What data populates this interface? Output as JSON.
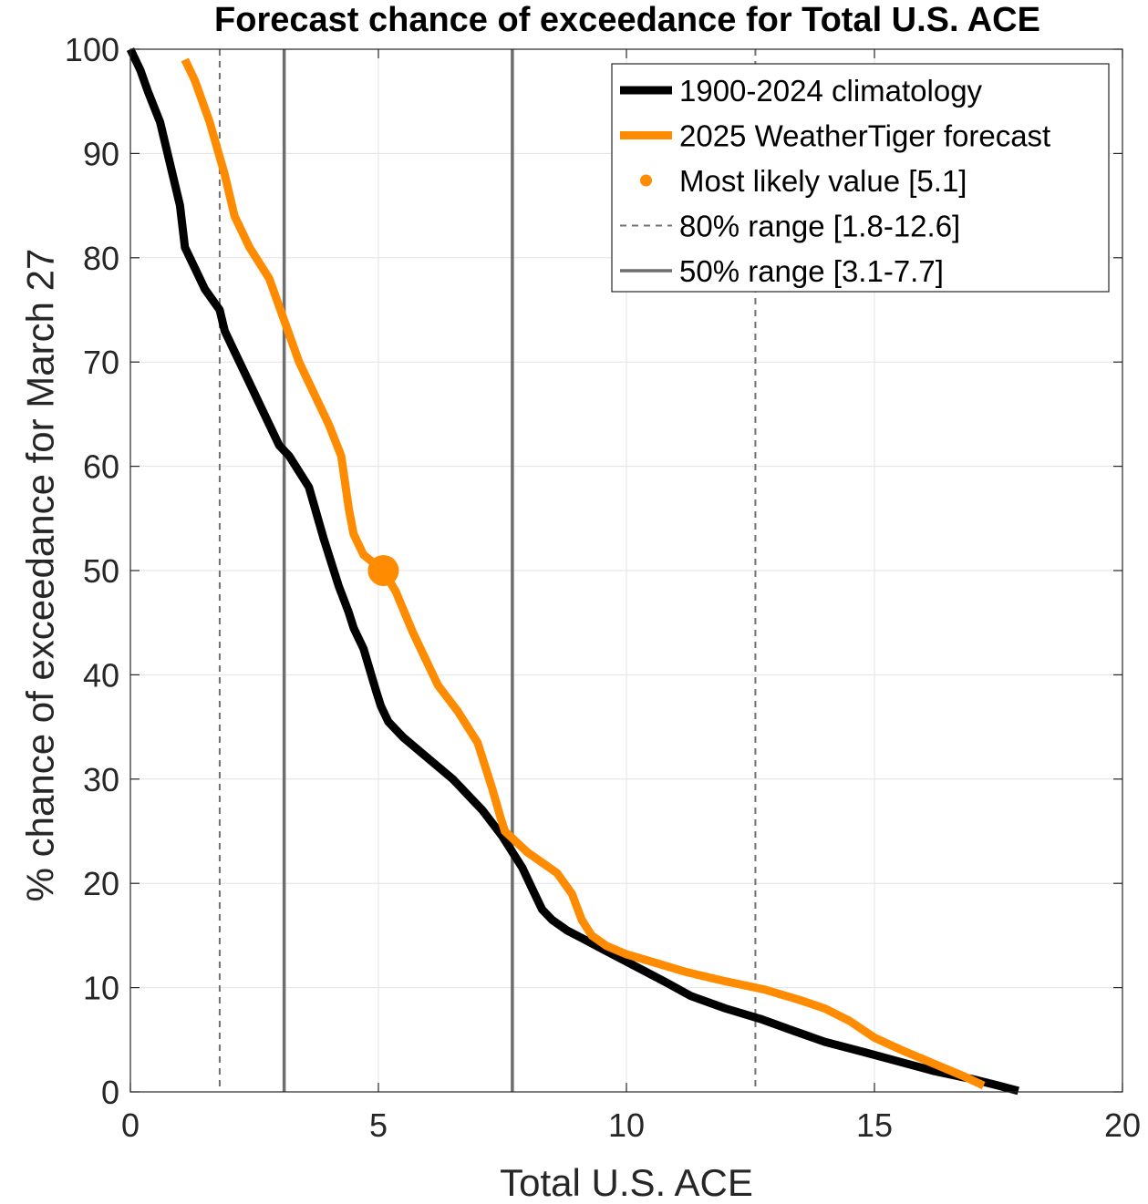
{
  "chart_data": {
    "type": "line",
    "title": "Forecast chance of exceedance for Total U.S. ACE",
    "xlabel": "Total U.S. ACE",
    "ylabel": "% chance of exceedance for March 27",
    "xlim": [
      0,
      20
    ],
    "ylim": [
      0,
      100
    ],
    "x_ticks": [
      0,
      5,
      10,
      15,
      20
    ],
    "y_ticks": [
      0,
      10,
      20,
      30,
      40,
      50,
      60,
      70,
      80,
      90,
      100
    ],
    "x_tick_labels": [
      "0",
      "5",
      "10",
      "15",
      "20"
    ],
    "y_tick_labels": [
      "0",
      "10",
      "20",
      "30",
      "40",
      "50",
      "60",
      "70",
      "80",
      "90",
      "100"
    ],
    "grid": true,
    "legend_position": "top-right",
    "series": [
      {
        "name": "1900-2024 climatology",
        "color": "#000000",
        "x": [
          0,
          0.2,
          0.35,
          0.6,
          0.8,
          1.0,
          1.1,
          1.3,
          1.5,
          1.8,
          1.9,
          2.1,
          2.4,
          2.7,
          3.0,
          3.2,
          3.6,
          3.9,
          4.2,
          4.4,
          4.5,
          4.7,
          4.95,
          5.05,
          5.2,
          5.5,
          6.0,
          6.5,
          6.8,
          7.1,
          7.5,
          7.9,
          8.1,
          8.3,
          8.5,
          8.8,
          9.2,
          9.6,
          10.2,
          10.8,
          11.3,
          12.0,
          12.7,
          13.4,
          14.0,
          14.8,
          15.5,
          16.2,
          17.0,
          17.5,
          17.9
        ],
        "y": [
          100,
          98,
          96,
          93,
          89,
          85,
          81,
          79,
          77,
          75,
          73,
          71,
          68,
          65,
          62,
          61,
          58,
          53,
          48.5,
          46,
          44.5,
          42.5,
          38.5,
          37,
          35.5,
          34,
          32,
          30,
          28.5,
          27,
          24.5,
          21.5,
          19.5,
          17.5,
          16.5,
          15.5,
          14.5,
          13.5,
          12,
          10.5,
          9.2,
          8,
          7,
          5.8,
          4.8,
          3.8,
          2.9,
          2,
          1.2,
          0.6,
          0.1
        ]
      },
      {
        "name": "2025 WeatherTiger forecast",
        "color": "#FF8C00",
        "x": [
          1.1,
          1.3,
          1.6,
          1.9,
          2.1,
          2.4,
          2.8,
          3.1,
          3.4,
          3.7,
          4.0,
          4.25,
          4.4,
          4.5,
          4.7,
          5.1,
          5.35,
          5.7,
          6.2,
          6.6,
          7.0,
          7.3,
          7.45,
          7.55,
          8.0,
          8.6,
          8.9,
          9.1,
          9.3,
          9.6,
          10.0,
          10.5,
          11.2,
          12.0,
          12.8,
          13.5,
          14.0,
          14.5,
          15.0,
          15.6,
          16.2,
          16.8,
          17.2
        ],
        "y": [
          99,
          97,
          93,
          88,
          84,
          81,
          78,
          74,
          70,
          67,
          64,
          61,
          56,
          53.5,
          51.5,
          50,
          48,
          44,
          39,
          36.5,
          33.5,
          29,
          26.5,
          25,
          23,
          21,
          19,
          16.5,
          15,
          14,
          13.2,
          12.5,
          11.5,
          10.6,
          9.8,
          8.8,
          8,
          6.8,
          5.2,
          3.9,
          2.7,
          1.5,
          0.6
        ]
      }
    ],
    "markers": [
      {
        "name": "Most likely value [5.1]",
        "x": 5.1,
        "y": 50,
        "color": "#FF8C00"
      }
    ],
    "vertical_lines": [
      {
        "name": "80% range [1.8-12.6]",
        "x": [
          1.8,
          12.6
        ],
        "style": "dashed",
        "color": "#707070"
      },
      {
        "name": "50% range [3.1-7.7]",
        "x": [
          3.1,
          7.7
        ],
        "style": "solid",
        "color": "#6E6E6E"
      }
    ],
    "legend": [
      {
        "label": "1900-2024 climatology",
        "kind": "line-thick",
        "color": "#000000"
      },
      {
        "label": "2025 WeatherTiger forecast",
        "kind": "line-thick",
        "color": "#FF8C00"
      },
      {
        "label": "Most likely value [5.1]",
        "kind": "dot",
        "color": "#FF8C00"
      },
      {
        "label": "80% range [1.8-12.6]",
        "kind": "dashed",
        "color": "#707070"
      },
      {
        "label": "50% range [3.1-7.7]",
        "kind": "solid",
        "color": "#6E6E6E"
      }
    ]
  }
}
